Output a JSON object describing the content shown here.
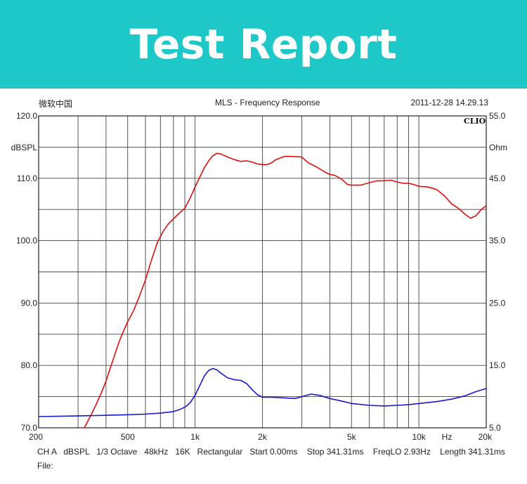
{
  "banner": {
    "title": "Test Report"
  },
  "header": {
    "left": "微软中国",
    "center": "MLS - Frequency Response",
    "right": "2011-12-28 14.29.13"
  },
  "brand_mark": "CLIO",
  "footer": {
    "line1": "CH A   dBSPL   1/3 Octave   48kHz   16K   Rectangular   Start 0.00ms    Stop 341.31ms    FreqLO 2.93Hz    Length 341.31ms",
    "line2": "File:"
  },
  "colors": {
    "banner": "#1fc8c8",
    "spl_curve": "#e01010",
    "impedance_curve": "#1818d0"
  },
  "chart_data": {
    "type": "line",
    "title": "MLS - Frequency Response",
    "x_scale": "log",
    "xlim": [
      200,
      20000
    ],
    "x_ticks": [
      200,
      500,
      1000,
      2000,
      5000,
      10000,
      20000
    ],
    "x_tick_labels": [
      "200",
      "500",
      "1k",
      "2k",
      "5k",
      "10k",
      "20k"
    ],
    "x_unit_label": "Hz",
    "ylabel_left": "dBSPL",
    "ylim_left": [
      70,
      120
    ],
    "y_ticks_left": [
      "120.0",
      "110.0",
      "100.0",
      "90.0",
      "80.0",
      "70.0"
    ],
    "ylabel_right": "Ohm",
    "ylim_right": [
      5,
      55
    ],
    "y_ticks_right": [
      "55.0",
      "45.0",
      "35.0",
      "25.0",
      "15.0",
      "5.0"
    ],
    "grid": true,
    "series": [
      {
        "axis": "left",
        "color": "#e01010",
        "x": [
          320,
          340,
          360,
          380,
          400,
          420,
          440,
          460,
          480,
          500,
          530,
          560,
          600,
          640,
          680,
          720,
          760,
          800,
          850,
          900,
          950,
          1000,
          1050,
          1100,
          1150,
          1200,
          1250,
          1300,
          1400,
          1500,
          1600,
          1700,
          1800,
          1900,
          2000,
          2100,
          2200,
          2300,
          2500,
          2700,
          3000,
          3200,
          3500,
          3800,
          4000,
          4200,
          4500,
          4800,
          5000,
          5500,
          6000,
          6500,
          7000,
          7500,
          8000,
          8500,
          9000,
          9500,
          10000,
          11000,
          12000,
          13000,
          14000,
          15000,
          16000,
          17000,
          18000,
          19000,
          20000
        ],
        "y": [
          70.0,
          71.8,
          73.6,
          75.5,
          77.5,
          79.8,
          82.0,
          84.0,
          85.6,
          87.0,
          88.7,
          90.8,
          93.7,
          97.0,
          99.8,
          101.5,
          102.7,
          103.5,
          104.4,
          105.2,
          106.8,
          108.6,
          110.2,
          111.7,
          112.8,
          113.6,
          114.0,
          113.9,
          113.4,
          113.0,
          112.7,
          112.8,
          112.6,
          112.3,
          112.2,
          112.2,
          112.5,
          113.0,
          113.5,
          113.5,
          113.4,
          112.5,
          111.8,
          111.0,
          110.6,
          110.5,
          109.9,
          109.0,
          108.9,
          108.9,
          109.3,
          109.6,
          109.6,
          109.7,
          109.4,
          109.2,
          109.2,
          109.0,
          108.7,
          108.6,
          108.2,
          107.2,
          105.9,
          105.2,
          104.3,
          103.6,
          104.0,
          105.0,
          105.6
        ]
      },
      {
        "axis": "right",
        "color": "#1818d0",
        "x": [
          200,
          300,
          400,
          500,
          600,
          700,
          800,
          850,
          900,
          950,
          1000,
          1050,
          1100,
          1150,
          1200,
          1250,
          1300,
          1400,
          1500,
          1600,
          1700,
          1800,
          1900,
          2000,
          2200,
          2500,
          2800,
          3000,
          3300,
          3600,
          4000,
          4500,
          5000,
          6000,
          7000,
          8000,
          9000,
          10000,
          12000,
          14000,
          16000,
          18000,
          20000
        ],
        "y": [
          6.8,
          6.9,
          7.0,
          7.1,
          7.2,
          7.35,
          7.6,
          7.9,
          8.3,
          9.0,
          10.2,
          11.8,
          13.3,
          14.2,
          14.5,
          14.3,
          13.8,
          13.0,
          12.7,
          12.6,
          12.1,
          11.1,
          10.3,
          9.9,
          9.9,
          9.8,
          9.7,
          10.0,
          10.4,
          10.2,
          9.7,
          9.3,
          8.9,
          8.6,
          8.5,
          8.6,
          8.7,
          8.9,
          9.2,
          9.6,
          10.1,
          10.8,
          11.3
        ]
      }
    ]
  }
}
